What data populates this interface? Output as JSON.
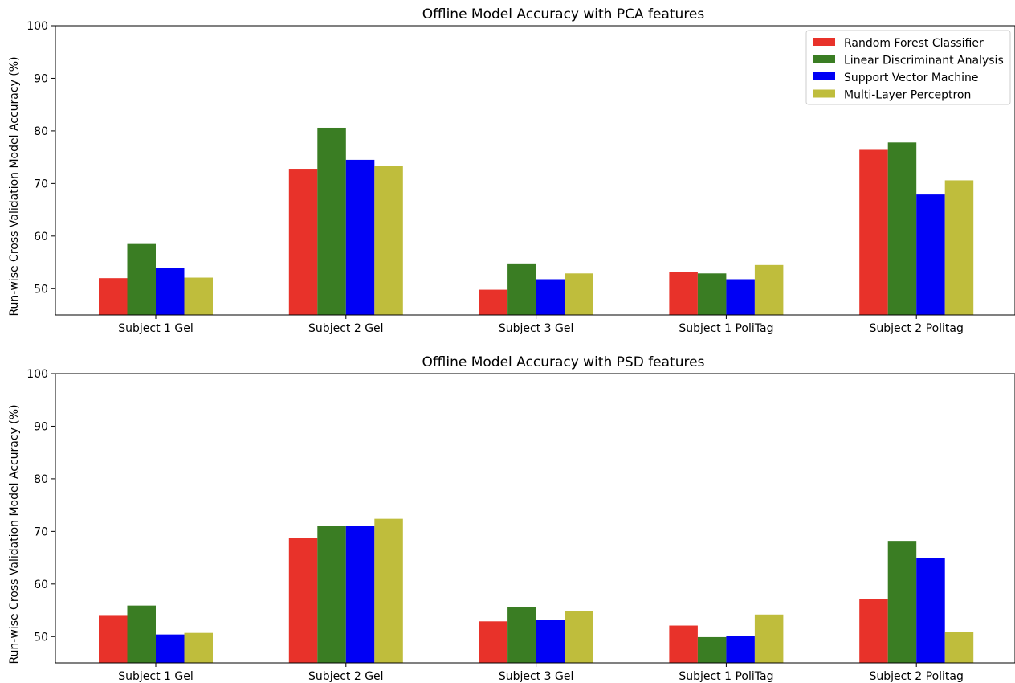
{
  "chart_data": [
    {
      "type": "bar",
      "title": "Offline Model Accuracy with PCA features",
      "xlabel": "",
      "ylabel": "Run-wise Cross Validation Model Accuracy (%)",
      "ylim": [
        45,
        100
      ],
      "yticks": [
        50,
        60,
        70,
        80,
        90,
        100
      ],
      "categories": [
        "Subject 1 Gel",
        "Subject 2 Gel",
        "Subject 3 Gel",
        "Subject 1 PoliTag",
        "Subject 2 Politag"
      ],
      "series": [
        {
          "name": "Random Forest Classifier",
          "color": "#e8322a",
          "values": [
            52.0,
            72.8,
            49.8,
            53.1,
            76.4
          ]
        },
        {
          "name": "Linear Discriminant Analysis",
          "color": "#3a7d23",
          "values": [
            58.5,
            80.6,
            54.8,
            52.9,
            77.8
          ]
        },
        {
          "name": "Support Vector Machine",
          "color": "#0000f5",
          "values": [
            54.0,
            74.5,
            51.8,
            51.8,
            67.9
          ]
        },
        {
          "name": "Multi-Layer Perceptron",
          "color": "#bfbd3c",
          "values": [
            52.1,
            73.4,
            52.9,
            54.5,
            70.6
          ]
        }
      ],
      "legend": "top-right",
      "grid": false
    },
    {
      "type": "bar",
      "title": "Offline Model Accuracy with PSD features",
      "xlabel": "",
      "ylabel": "Run-wise Cross Validation Model Accuracy (%)",
      "ylim": [
        45,
        100
      ],
      "yticks": [
        50,
        60,
        70,
        80,
        90,
        100
      ],
      "categories": [
        "Subject 1 Gel",
        "Subject 2 Gel",
        "Subject 3 Gel",
        "Subject 1 PoliTag",
        "Subject 2 Politag"
      ],
      "series": [
        {
          "name": "Random Forest Classifier",
          "color": "#e8322a",
          "values": [
            54.1,
            68.8,
            52.9,
            52.1,
            57.2
          ]
        },
        {
          "name": "Linear Discriminant Analysis",
          "color": "#3a7d23",
          "values": [
            55.9,
            71.0,
            55.6,
            49.9,
            68.2
          ]
        },
        {
          "name": "Support Vector Machine",
          "color": "#0000f5",
          "values": [
            50.4,
            71.0,
            53.1,
            50.1,
            65.0
          ]
        },
        {
          "name": "Multi-Layer Perceptron",
          "color": "#bfbd3c",
          "values": [
            50.7,
            72.4,
            54.8,
            54.2,
            50.9
          ]
        }
      ],
      "legend": "none",
      "grid": false
    }
  ]
}
